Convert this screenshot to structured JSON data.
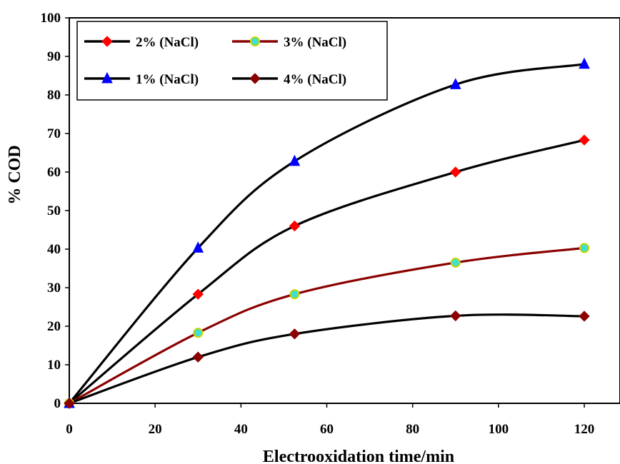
{
  "chart_data": {
    "type": "line",
    "xlabel": "Electrooxidation time/min",
    "ylabel": "% COD",
    "xlim": [
      0,
      120
    ],
    "ylim": [
      0,
      100
    ],
    "xticks": [
      "0",
      "20",
      "40",
      "60",
      "80",
      "100",
      "120"
    ],
    "yticks": [
      "0",
      "10",
      "20",
      "30",
      "40",
      "50",
      "60",
      "70",
      "80",
      "90",
      "100"
    ],
    "grid": false,
    "legend_position": "top-left",
    "series": [
      {
        "name": "2% (NaCl)",
        "line_color": "#000000",
        "marker": "diamond",
        "marker_color": "#ff0000",
        "x": [
          0,
          30,
          52.5,
          90,
          120
        ],
        "y": [
          0,
          28.3,
          46,
          60,
          68.3
        ]
      },
      {
        "name": "3% (NaCl)",
        "line_color": "#8b0000",
        "marker": "circle",
        "marker_color": "#40e0d0",
        "marker_edge": "#c8d400",
        "x": [
          0,
          30,
          52.5,
          90,
          120
        ],
        "y": [
          0,
          18.3,
          28.3,
          36.5,
          40.3
        ]
      },
      {
        "name": "1% (NaCl)",
        "line_color": "#000000",
        "marker": "triangle",
        "marker_color": "#0000ff",
        "x": [
          0,
          30,
          52.5,
          90,
          120
        ],
        "y": [
          0,
          40.3,
          62.8,
          82.7,
          88
        ]
      },
      {
        "name": "4% (NaCl)",
        "line_color": "#000000",
        "marker": "diamond",
        "marker_color": "#8b0000",
        "x": [
          0,
          30,
          52.5,
          90,
          120
        ],
        "y": [
          0,
          12,
          18,
          22.7,
          22.6
        ]
      }
    ]
  }
}
